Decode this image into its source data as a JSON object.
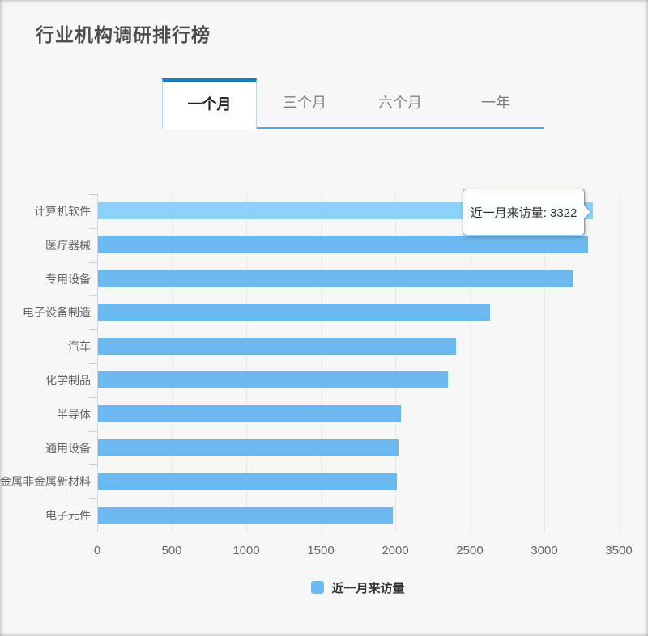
{
  "tabs": [
    {
      "id": "one-month",
      "label": "一个月",
      "active": true
    },
    {
      "id": "three-months",
      "label": "三个月",
      "active": false
    },
    {
      "id": "six-months",
      "label": "六个月",
      "active": false
    },
    {
      "id": "one-year",
      "label": "一年",
      "active": false
    }
  ],
  "chart_data": {
    "type": "bar",
    "orientation": "horizontal",
    "title": "行业机构调研排行榜",
    "categories": [
      "计算机软件",
      "医疗器械",
      "专用设备",
      "电子设备制造",
      "汽车",
      "化学制品",
      "半导体",
      "通用设备",
      "金属非金属新材料",
      "电子元件"
    ],
    "series": [
      {
        "name": "近一月来访量",
        "values": [
          3322,
          3290,
          3190,
          2630,
          2400,
          2350,
          2030,
          2015,
          2005,
          1980
        ]
      }
    ],
    "xlim": [
      0,
      3500
    ],
    "xticks": [
      0,
      500,
      1000,
      1500,
      2000,
      2500,
      3000,
      3500
    ],
    "grid": true,
    "legend_position": "bottom",
    "highlighted_index": 0,
    "tooltip": {
      "text": "近一月来访量: 3322",
      "target_category": "计算机软件"
    }
  },
  "colors": {
    "bar": "#6cb9ef",
    "bar_highlight": "#8ad2f9",
    "tab_active_top": "#1181c2",
    "tab_underline": "#54a9dc",
    "tooltip_border": "#5ba8dd",
    "grid": "#e8e8e8",
    "axis_line": "#ccd6eb"
  }
}
